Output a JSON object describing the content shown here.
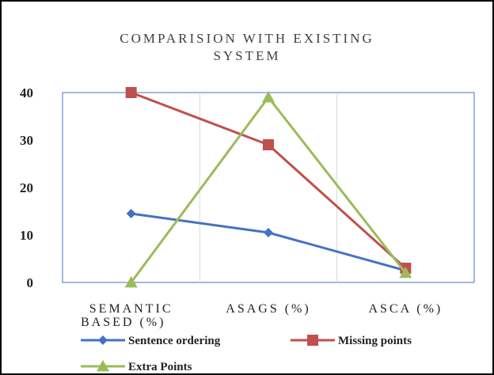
{
  "chart_data": {
    "type": "line",
    "title": "COMPARISION WITH EXISTING SYSTEM",
    "title_lines": [
      "COMPARISION WITH EXISTING",
      "SYSTEM"
    ],
    "categories": [
      "SEMANTIC BASED (%)",
      "ASAGS (%)",
      "ASCA (%)"
    ],
    "category_lines": [
      [
        "SEMANTIC",
        "BASED (%)"
      ],
      [
        "ASAGS (%)"
      ],
      [
        "ASCA (%)"
      ]
    ],
    "ylim": [
      0,
      40
    ],
    "yticks": [
      0,
      10,
      20,
      30,
      40
    ],
    "grid": "vertical",
    "legend_position": "bottom",
    "series": [
      {
        "name": "Sentence ordering",
        "values": [
          14.5,
          10.5,
          2.5
        ],
        "color": "#4472C4",
        "marker": "diamond"
      },
      {
        "name": "Missing points",
        "values": [
          40,
          29,
          3
        ],
        "color": "#C0504D",
        "marker": "square"
      },
      {
        "name": "Extra Points",
        "values": [
          0,
          39,
          2
        ],
        "color": "#9BBB59",
        "marker": "triangle"
      }
    ]
  }
}
